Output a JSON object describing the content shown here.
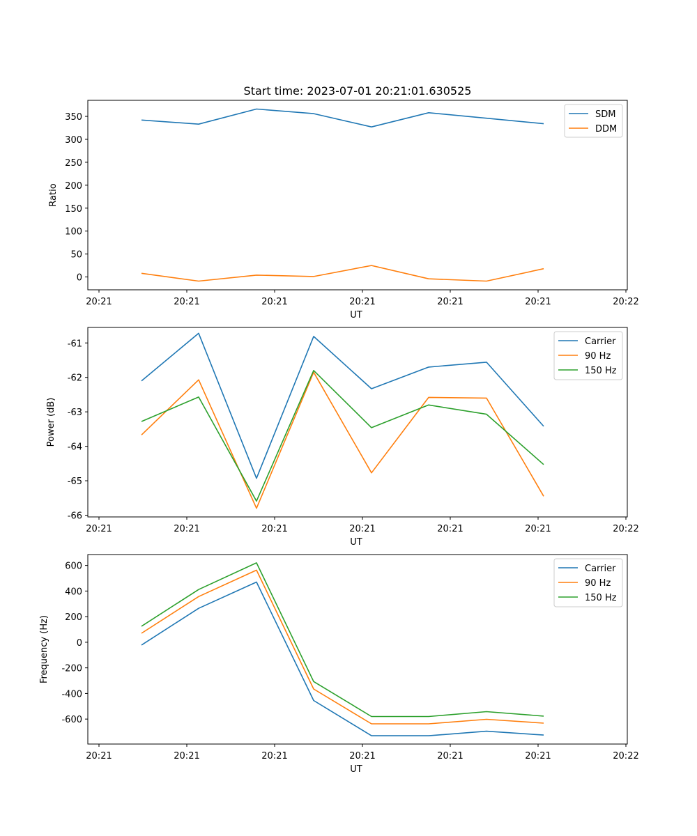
{
  "figure_title": "Start time: 2023-07-01 20:21:01.630525",
  "colors": {
    "blue": "#1f77b4",
    "orange": "#ff7f0e",
    "green": "#2ca02c"
  },
  "chart_data": [
    {
      "type": "line",
      "xlabel": "UT",
      "ylabel": "Ratio",
      "x_ticks": [
        "20:21",
        "20:21",
        "20:21",
        "20:21",
        "20:21",
        "20:21",
        "20:22"
      ],
      "y_ticks": [
        0,
        50,
        100,
        150,
        200,
        250,
        300,
        350
      ],
      "ylim": [
        -28,
        385
      ],
      "legend": "top-right",
      "series": [
        {
          "name": "SDM",
          "color": "#1f77b4",
          "values": [
            342,
            333,
            366,
            356,
            327,
            358,
            346,
            334
          ]
        },
        {
          "name": "DDM",
          "color": "#ff7f0e",
          "values": [
            8,
            -9,
            4,
            1,
            25,
            -4,
            -9,
            18
          ]
        }
      ]
    },
    {
      "type": "line",
      "xlabel": "UT",
      "ylabel": "Power (dB)",
      "x_ticks": [
        "20:21",
        "20:21",
        "20:21",
        "20:21",
        "20:21",
        "20:21",
        "20:22"
      ],
      "y_ticks": [
        -66,
        -65,
        -64,
        -63,
        -62,
        -61
      ],
      "ylim": [
        -66.05,
        -60.55
      ],
      "legend": "top-right",
      "series": [
        {
          "name": "Carrier",
          "color": "#1f77b4",
          "values": [
            -62.1,
            -60.72,
            -64.93,
            -60.81,
            -62.33,
            -61.7,
            -61.56,
            -63.42
          ]
        },
        {
          "name": "90 Hz",
          "color": "#ff7f0e",
          "values": [
            -63.67,
            -62.07,
            -65.8,
            -61.85,
            -64.77,
            -62.58,
            -62.6,
            -65.45
          ]
        },
        {
          "name": "150 Hz",
          "color": "#2ca02c",
          "values": [
            -63.28,
            -62.57,
            -65.59,
            -61.8,
            -63.46,
            -62.8,
            -63.07,
            -64.53
          ]
        }
      ]
    },
    {
      "type": "line",
      "xlabel": "UT",
      "ylabel": "Frequency (Hz)",
      "x_ticks": [
        "20:21",
        "20:21",
        "20:21",
        "20:21",
        "20:21",
        "20:21",
        "20:22"
      ],
      "y_ticks": [
        -600,
        -400,
        -200,
        0,
        200,
        400,
        600
      ],
      "ylim": [
        -795,
        685
      ],
      "legend": "top-right",
      "series": [
        {
          "name": "Carrier",
          "color": "#1f77b4",
          "values": [
            -22,
            265,
            470,
            -455,
            -730,
            -730,
            -695,
            -725
          ]
        },
        {
          "name": "90 Hz",
          "color": "#ff7f0e",
          "values": [
            70,
            357,
            563,
            -365,
            -637,
            -637,
            -602,
            -632
          ]
        },
        {
          "name": "150 Hz",
          "color": "#2ca02c",
          "values": [
            125,
            412,
            620,
            -307,
            -580,
            -580,
            -542,
            -577
          ]
        }
      ]
    }
  ]
}
